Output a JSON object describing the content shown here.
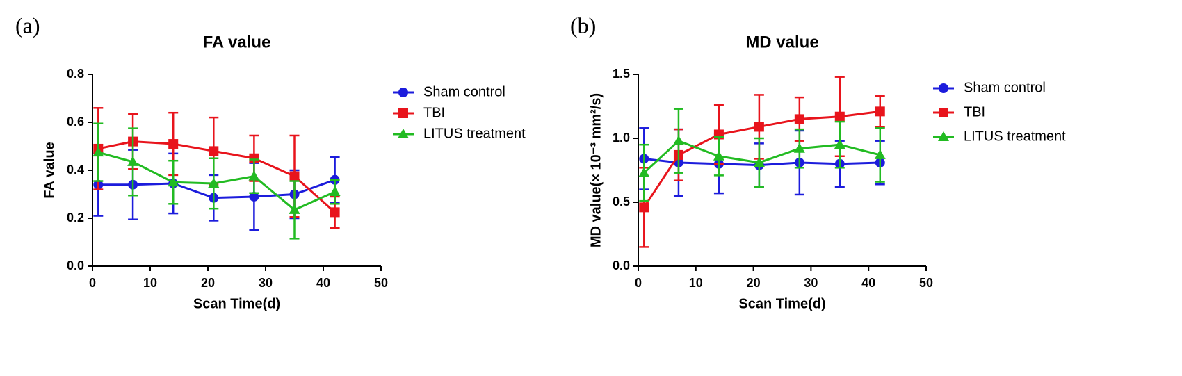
{
  "chart_data": [
    {
      "type": "line",
      "panel_label": "(a)",
      "title": "FA value",
      "xlabel": "Scan Time(d)",
      "ylabel": "FA value",
      "x": [
        1,
        7,
        14,
        21,
        28,
        35,
        42
      ],
      "xlim": [
        0,
        50
      ],
      "xticks": [
        0,
        10,
        20,
        30,
        40,
        50
      ],
      "ylim": [
        0,
        0.8
      ],
      "yticks": [
        {
          "value": 0,
          "label": "0.0"
        },
        0.2,
        0.4,
        0.6,
        0.8
      ],
      "legend": "right",
      "series": [
        {
          "name": "Sham control",
          "color": "#1c1cdc",
          "marker": "circle",
          "values": [
            0.34,
            0.34,
            0.345,
            0.285,
            0.29,
            0.3,
            0.36
          ],
          "errors": [
            0.13,
            0.145,
            0.125,
            0.095,
            0.14,
            0.1,
            0.095
          ]
        },
        {
          "name": "TBI",
          "color": "#e8141c",
          "marker": "square",
          "values": [
            0.49,
            0.52,
            0.51,
            0.48,
            0.45,
            0.375,
            0.225
          ],
          "errors": [
            0.17,
            0.115,
            0.13,
            0.14,
            0.095,
            0.17,
            0.065
          ]
        },
        {
          "name": "LITUS treatment",
          "color": "#22bb22",
          "marker": "triangle",
          "values": [
            0.475,
            0.435,
            0.35,
            0.345,
            0.375,
            0.235,
            0.31
          ],
          "errors": [
            0.12,
            0.14,
            0.09,
            0.105,
            0.07,
            0.12,
            0.05
          ]
        }
      ]
    },
    {
      "type": "line",
      "panel_label": "(b)",
      "title": "MD value",
      "xlabel": "Scan Time(d)",
      "ylabel": "MD value(× 10⁻³ mm²/s)",
      "x": [
        1,
        7,
        14,
        21,
        28,
        35,
        42
      ],
      "xlim": [
        0,
        50
      ],
      "xticks": [
        0,
        10,
        20,
        30,
        40,
        50
      ],
      "ylim": [
        0,
        1.5
      ],
      "yticks": [
        {
          "value": 0,
          "label": "0.0"
        },
        0.5,
        {
          "value": 1,
          "label": "1.0"
        },
        1.5
      ],
      "legend": "right",
      "series": [
        {
          "name": "Sham control",
          "color": "#1c1cdc",
          "marker": "circle",
          "values": [
            0.84,
            0.81,
            0.8,
            0.79,
            0.81,
            0.8,
            0.81
          ],
          "errors": [
            0.24,
            0.26,
            0.23,
            0.17,
            0.25,
            0.18,
            0.17
          ]
        },
        {
          "name": "TBI",
          "color": "#e8141c",
          "marker": "square",
          "values": [
            0.46,
            0.87,
            1.03,
            1.09,
            1.15,
            1.17,
            1.21
          ],
          "errors": [
            0.31,
            0.2,
            0.23,
            0.25,
            0.17,
            0.31,
            0.12
          ]
        },
        {
          "name": "LITUS treatment",
          "color": "#22bb22",
          "marker": "triangle",
          "values": [
            0.73,
            0.98,
            0.86,
            0.81,
            0.92,
            0.95,
            0.87
          ],
          "errors": [
            0.22,
            0.25,
            0.15,
            0.19,
            0.15,
            0.18,
            0.21
          ]
        }
      ]
    }
  ]
}
